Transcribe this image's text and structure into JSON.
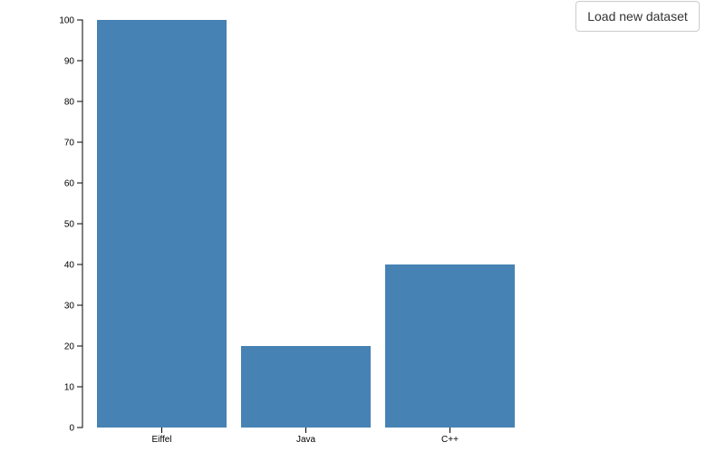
{
  "button": {
    "label": "Load new dataset"
  },
  "chart_data": {
    "type": "bar",
    "categories": [
      "Eiffel",
      "Java",
      "C++"
    ],
    "values": [
      100,
      20,
      40
    ],
    "ylim": [
      0,
      100
    ],
    "yticks": [
      0,
      10,
      20,
      30,
      40,
      50,
      60,
      70,
      80,
      90,
      100
    ],
    "bar_color": "#4682b4",
    "grid": false,
    "title": "",
    "xlabel": "",
    "ylabel": ""
  }
}
